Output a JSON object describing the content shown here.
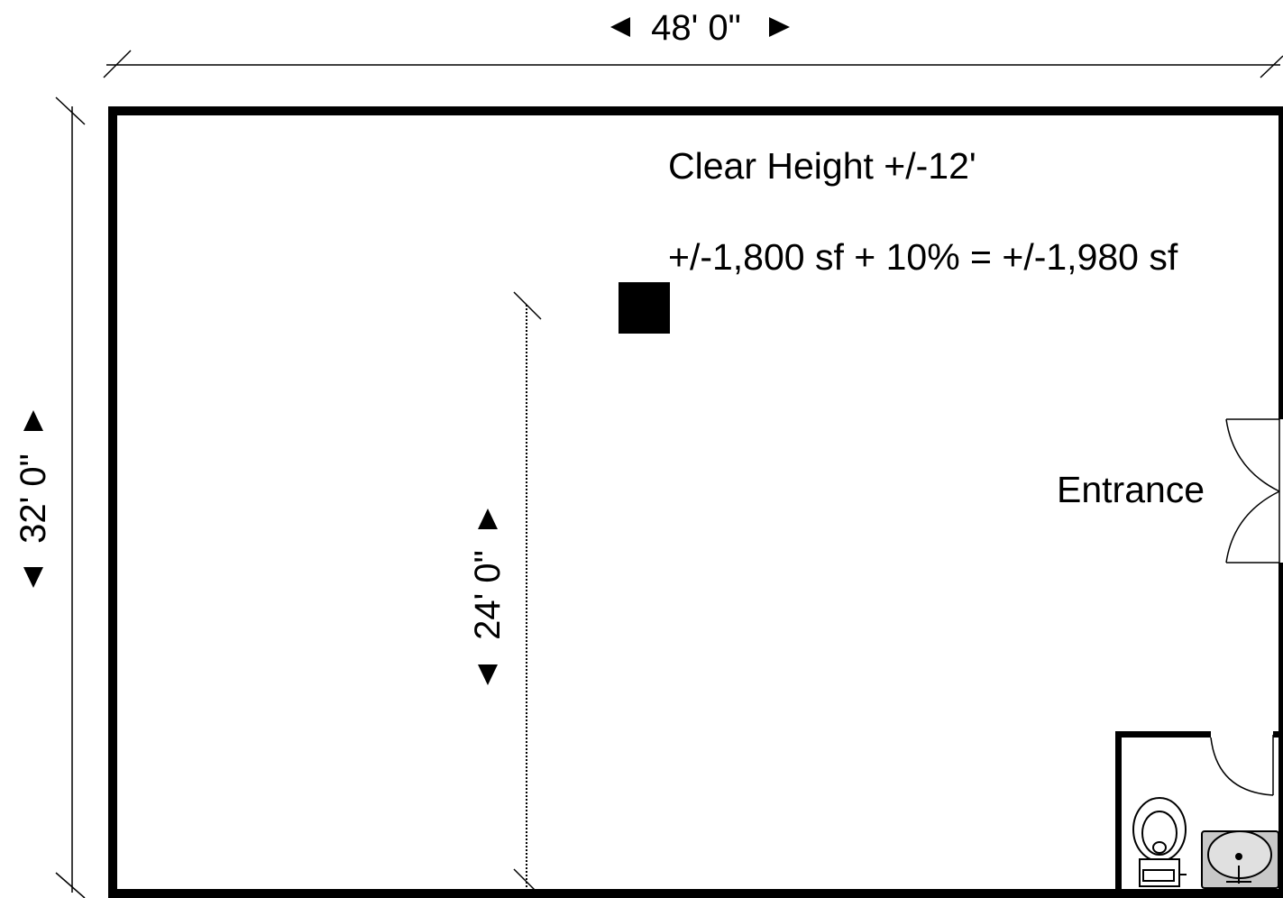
{
  "plan": {
    "width_dimension": "48' 0\"",
    "height_dimension": "32' 0\"",
    "inner_dimension": "24' 0\"",
    "clear_height": "Clear Height +/-12'",
    "area": "+/-1,800 sf + 10% = +/-1,980 sf",
    "entrance_label": "Entrance"
  },
  "colors": {
    "wall": "#000000",
    "background": "#ffffff",
    "fixture_fill": "#c8c8c8"
  },
  "icons": {
    "column": "square-column-icon",
    "entrance_door": "double-door-icon",
    "restroom_door": "single-door-icon",
    "toilet": "toilet-icon",
    "sink": "sink-icon"
  }
}
